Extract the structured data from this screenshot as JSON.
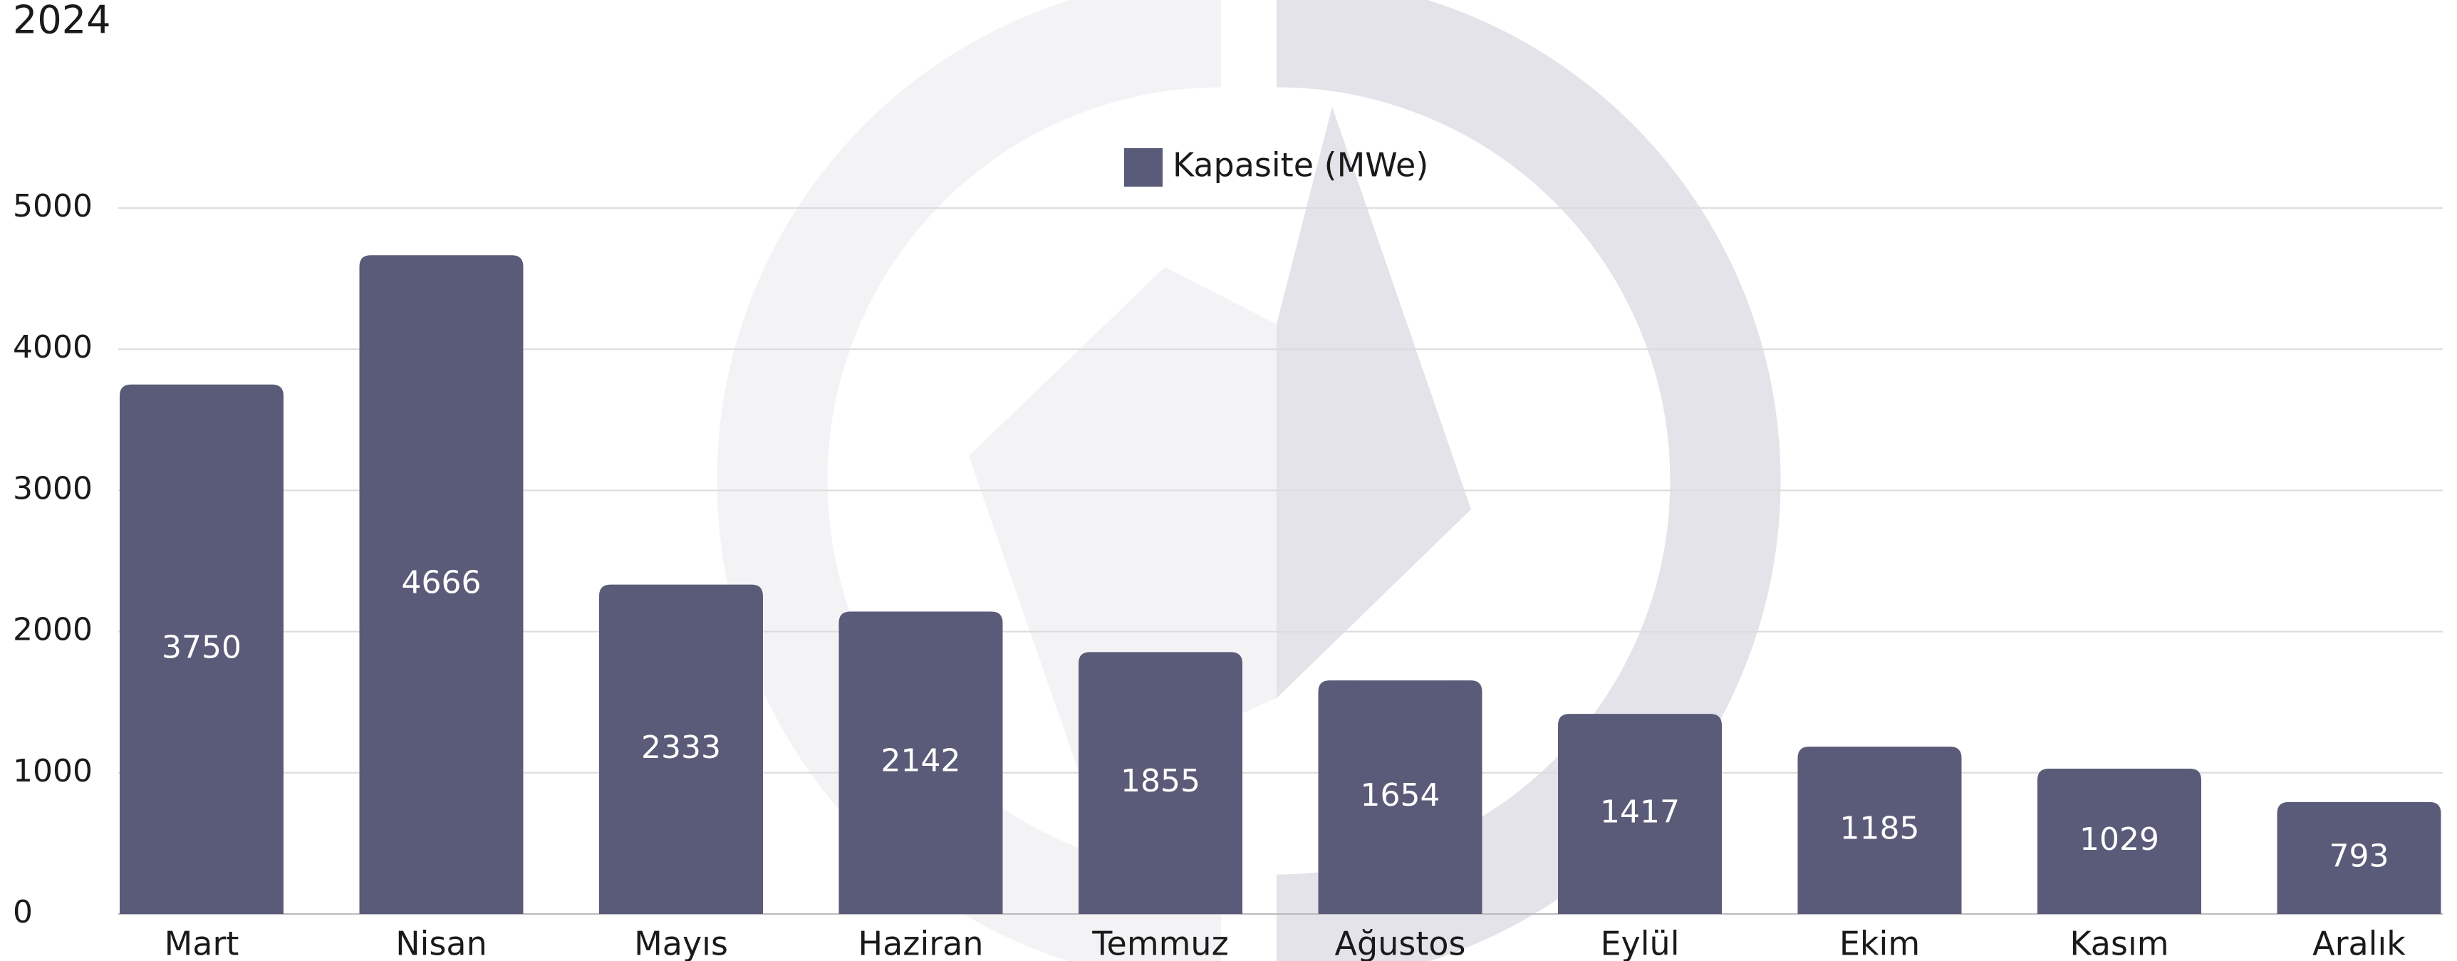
{
  "chart_data": {
    "type": "bar",
    "title": "2024",
    "categories": [
      "Mart",
      "Nisan",
      "Mayıs",
      "Haziran",
      "Temmuz",
      "Ağustos",
      "Eylül",
      "Ekim",
      "Kasım",
      "Aralık"
    ],
    "series": [
      {
        "name": "Kapasite (MWe)",
        "color": "#5a5b78",
        "values": [
          3750,
          4666,
          2333,
          2142,
          1855,
          1654,
          1417,
          1185,
          1029,
          793
        ]
      }
    ],
    "ylim": [
      0,
      5000
    ],
    "yticks": [
      0,
      1000,
      2000,
      3000,
      4000,
      5000
    ],
    "grid": true,
    "legend": "top"
  }
}
